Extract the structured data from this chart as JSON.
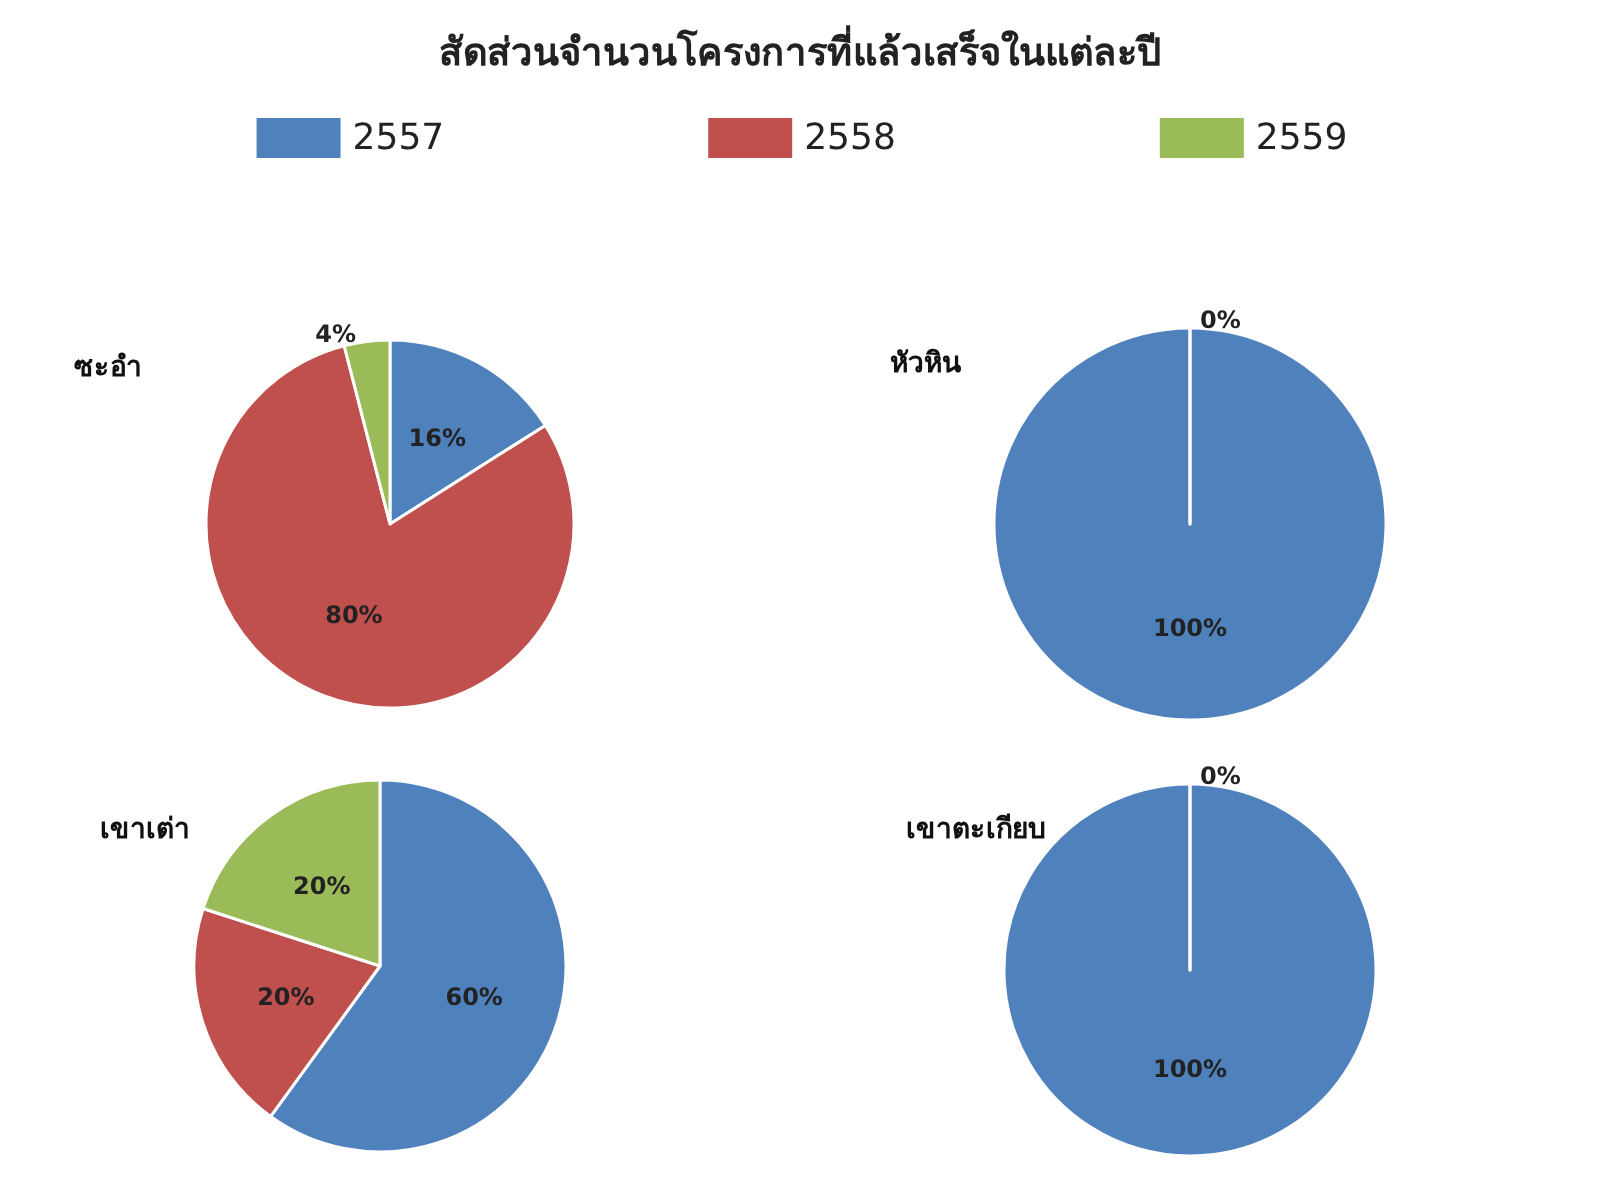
{
  "chart_data": [
    {
      "type": "pie",
      "title": "สัดส่วนจำนวนโครงการที่แล้วเสร็จในแต่ละปี",
      "subtitle": "ซะอำ",
      "legend": "top",
      "categories": [
        "2557",
        "2558",
        "2559"
      ],
      "values": [
        16,
        80,
        4
      ],
      "value_labels": [
        "16%",
        "80%",
        "4%"
      ],
      "colors": [
        "#4f81bd",
        "#c0504d",
        "#9bbb59"
      ]
    },
    {
      "type": "pie",
      "subtitle": "หัวหิน",
      "categories": [
        null,
        null,
        null
      ],
      "values": [
        100,
        0,
        0
      ],
      "value_labels": [
        "100%",
        "0%",
        null
      ],
      "colors": [
        "#4f81bd",
        "#c0504d",
        "#9bbb59"
      ]
    },
    {
      "type": "pie",
      "subtitle": "เขาเต่า",
      "categories": [
        null,
        null,
        null
      ],
      "values": [
        60,
        20,
        20
      ],
      "value_labels": [
        "60%",
        "20%",
        "20%"
      ],
      "colors": [
        "#4f81bd",
        "#c0504d",
        "#9bbb59"
      ]
    },
    {
      "type": "pie",
      "subtitle": "เขาตะเกียบ",
      "categories": [
        null,
        null,
        null
      ],
      "values": [
        100,
        0,
        0
      ],
      "value_labels": [
        "100%",
        "0%",
        null
      ],
      "colors": [
        "#4f81bd",
        "#c0504d",
        "#9bbb59"
      ]
    }
  ]
}
